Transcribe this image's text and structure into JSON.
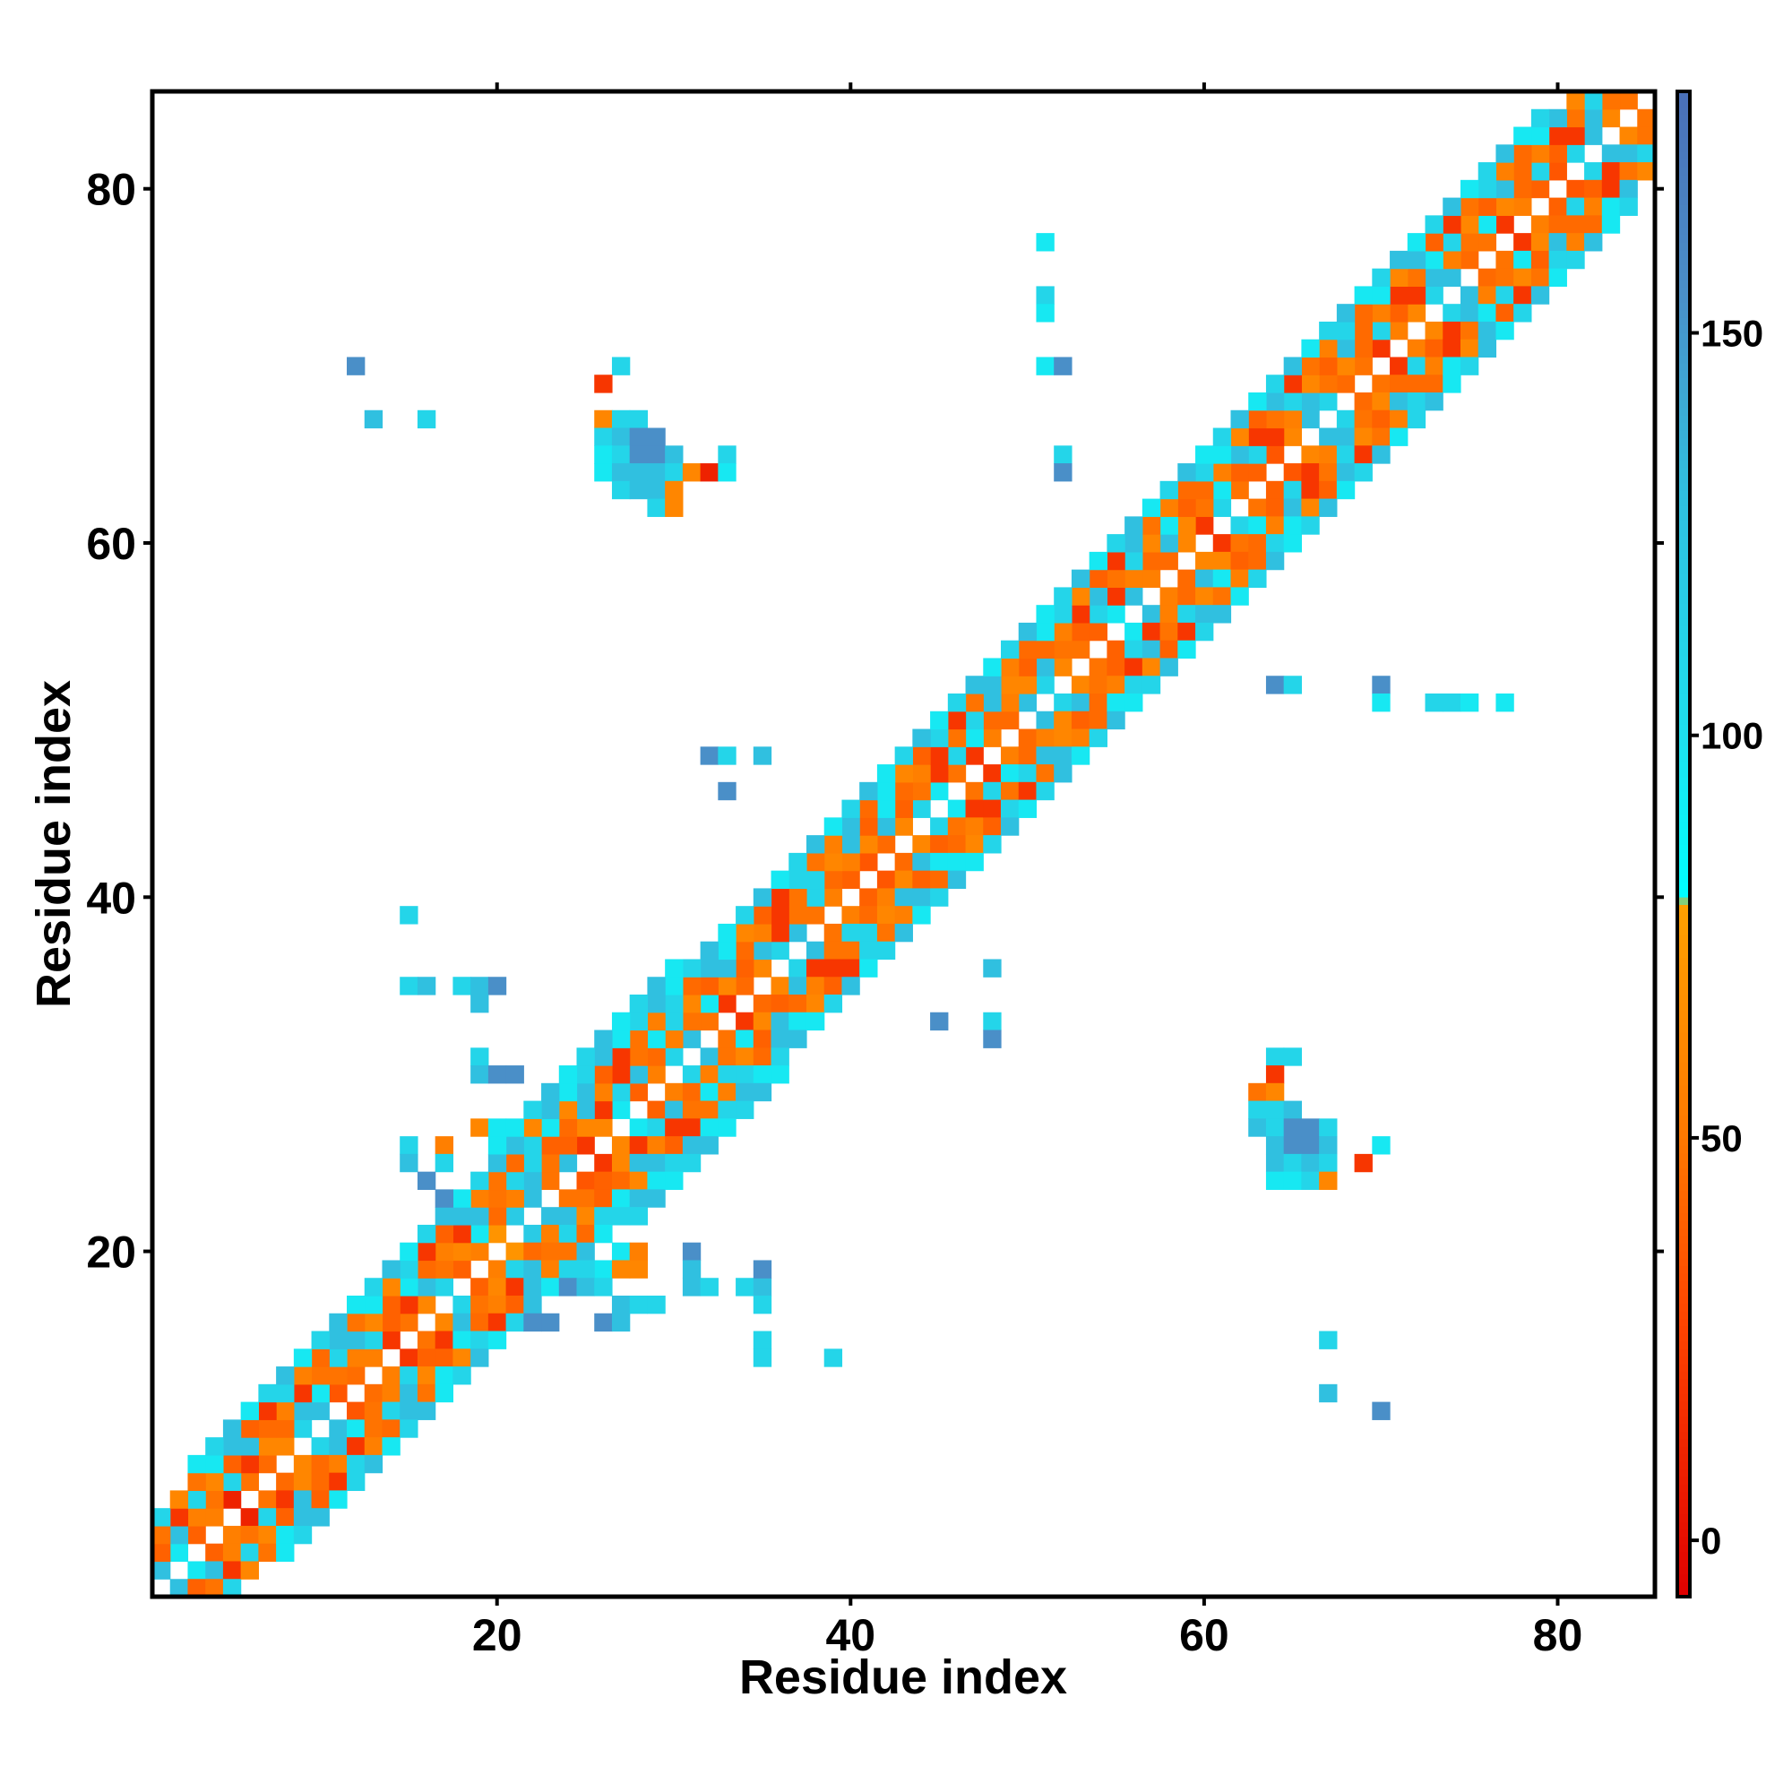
{
  "chart_data": {
    "type": "heatmap",
    "title": "",
    "xlabel": "Residue index",
    "ylabel": "Residue index",
    "xlim": [
      1,
      85
    ],
    "ylim": [
      1,
      85
    ],
    "x_ticks": [
      20,
      40,
      60,
      80
    ],
    "y_ticks": [
      20,
      40,
      60,
      80
    ],
    "grid": false,
    "legend": "colorbar-right",
    "colorbar": {
      "range": [
        -7,
        180
      ],
      "ticks": [
        0,
        50,
        100,
        150
      ],
      "stops": [
        {
          "value": -7,
          "color": "#e00000"
        },
        {
          "value": 30,
          "color": "#ff4a00"
        },
        {
          "value": 50,
          "color": "#ff7800"
        },
        {
          "value": 79,
          "color": "#ffa000"
        },
        {
          "value": 80,
          "color": "#00ffff"
        },
        {
          "value": 100,
          "color": "#1ee0ee"
        },
        {
          "value": 130,
          "color": "#30c0e0"
        },
        {
          "value": 155,
          "color": "#4a8fc8"
        },
        {
          "value": 180,
          "color": "#4a6fb8"
        },
        {
          "value": 181,
          "color": "#ffffff"
        }
      ]
    },
    "diagonal_bands": [
      {
        "offset": 1,
        "from": 1,
        "to": 84,
        "values": [
          130,
          95,
          40,
          55,
          10,
          48,
          44,
          60,
          110,
          130,
          35,
          45,
          55,
          20,
          48,
          60,
          110,
          40,
          55,
          70,
          120,
          130,
          48,
          35,
          20,
          60,
          95,
          40,
          55,
          110,
          130,
          48,
          20,
          44,
          60,
          110,
          130,
          48,
          55,
          40,
          35,
          44,
          60,
          110,
          95,
          48,
          20,
          55,
          44,
          130,
          110,
          60,
          48,
          40,
          95,
          130,
          55,
          44,
          60,
          20,
          110,
          48,
          40,
          35,
          60,
          130,
          110,
          44,
          48,
          20,
          55,
          60,
          110,
          130,
          44,
          48,
          20,
          55,
          40,
          35,
          110,
          130,
          60,
          48
        ]
      },
      {
        "offset": 2,
        "from": 1,
        "to": 83,
        "values": [
          40,
          130,
          55,
          48,
          110,
          20,
          60,
          44,
          130,
          95,
          48,
          55,
          110,
          40,
          20,
          130,
          48,
          60,
          110,
          44,
          55,
          130,
          48,
          40,
          60,
          20,
          110,
          130,
          44,
          55,
          48,
          95,
          60,
          40,
          130,
          20,
          48,
          110,
          44,
          55,
          60,
          130,
          40,
          48,
          20,
          110,
          95,
          44,
          55,
          60,
          130,
          48,
          40,
          110,
          20,
          55,
          44,
          130,
          60,
          48,
          95,
          40,
          110,
          20,
          55,
          130,
          48,
          60,
          44,
          110,
          40,
          20,
          130,
          55,
          48,
          95,
          60,
          44,
          110,
          40,
          20,
          130,
          48
        ]
      },
      {
        "offset": 3,
        "from": 1,
        "to": 82,
        "values": [
          48,
          20,
          110,
          60,
          40,
          130,
          44,
          55,
          20,
          48,
          110,
          130,
          60,
          40,
          95,
          44,
          55,
          20,
          130,
          48,
          110,
          60,
          40,
          44,
          130,
          55,
          20,
          48,
          95,
          110,
          60,
          40,
          130,
          44,
          55,
          20,
          48,
          110,
          60,
          130,
          40,
          95,
          44,
          55,
          20,
          48,
          110,
          130,
          60,
          40,
          44,
          55,
          20,
          130,
          48,
          110,
          60,
          95,
          40,
          44,
          55,
          130,
          20,
          48,
          110,
          60,
          40,
          130,
          44,
          55,
          20,
          48,
          95,
          110,
          60,
          40,
          130,
          44,
          55,
          20,
          48,
          110
        ]
      },
      {
        "offset": 4,
        "from": 1,
        "to": 81,
        "values": [
          110,
          60,
          48,
          95,
          130,
          40,
          20,
          110,
          55,
          44,
          130,
          48,
          95,
          60,
          110,
          20,
          40,
          130,
          55,
          48,
          44,
          110,
          95,
          60,
          130,
          40,
          20,
          48,
          55,
          110,
          44,
          130,
          95,
          60,
          40,
          20,
          110,
          48,
          55,
          130,
          44,
          95,
          60,
          40,
          110,
          20,
          48,
          130,
          55,
          44,
          95,
          110,
          60,
          40,
          20,
          130,
          48,
          55,
          44,
          110,
          95,
          60,
          40,
          130,
          20,
          48,
          55,
          110,
          44,
          95,
          60,
          130,
          40,
          20,
          48,
          110,
          55,
          44,
          95,
          130,
          60
        ]
      },
      {
        "offset": 5,
        "from": 3,
        "to": 79,
        "values": [
          95,
          110,
          130,
          95,
          110,
          130,
          95,
          110,
          130,
          95,
          110,
          130,
          95,
          110,
          130,
          95,
          110,
          130,
          95,
          110,
          130,
          95,
          110,
          130,
          95,
          110,
          130,
          95,
          110,
          130,
          95,
          110,
          130,
          95,
          110,
          130,
          95,
          110,
          130,
          95,
          110,
          130,
          95,
          110,
          130,
          95,
          110,
          130,
          95,
          110,
          130,
          95,
          110,
          130,
          95,
          110,
          130,
          95,
          110,
          130,
          95,
          110,
          130,
          95,
          110,
          130,
          95,
          110,
          130,
          95,
          110,
          130,
          95,
          110,
          130,
          95,
          110
        ]
      },
      {
        "offset": 6,
        "from": 22,
        "to": 30,
        "values": [
          110,
          130,
          95,
          110,
          130,
          95,
          110,
          130,
          95
        ]
      }
    ],
    "points": [
      [
        12,
        70,
        155
      ],
      [
        13,
        67,
        130
      ],
      [
        16,
        67,
        110
      ],
      [
        27,
        70,
        110
      ],
      [
        26,
        69,
        20
      ],
      [
        26,
        67,
        60
      ],
      [
        27,
        67,
        110
      ],
      [
        28,
        67,
        110
      ],
      [
        26,
        66,
        110
      ],
      [
        27,
        66,
        130
      ],
      [
        28,
        66,
        155
      ],
      [
        29,
        66,
        155
      ],
      [
        26,
        65,
        95
      ],
      [
        27,
        65,
        110
      ],
      [
        28,
        65,
        155
      ],
      [
        29,
        65,
        155
      ],
      [
        30,
        65,
        130
      ],
      [
        33,
        65,
        110
      ],
      [
        26,
        64,
        95
      ],
      [
        27,
        64,
        130
      ],
      [
        28,
        64,
        130
      ],
      [
        29,
        64,
        130
      ],
      [
        30,
        64,
        110
      ],
      [
        31,
        64,
        60
      ],
      [
        32,
        64,
        10
      ],
      [
        33,
        64,
        95
      ],
      [
        27,
        63,
        110
      ],
      [
        28,
        63,
        130
      ],
      [
        29,
        63,
        130
      ],
      [
        30,
        63,
        60
      ],
      [
        29,
        62,
        110
      ],
      [
        30,
        62,
        60
      ],
      [
        51,
        77,
        95
      ],
      [
        51,
        74,
        110
      ],
      [
        51,
        73,
        95
      ],
      [
        51,
        70,
        95
      ],
      [
        52,
        70,
        155
      ],
      [
        52,
        65,
        110
      ],
      [
        52,
        64,
        155
      ],
      [
        64,
        52,
        155
      ],
      [
        65,
        52,
        110
      ],
      [
        70,
        52,
        155
      ],
      [
        70,
        51,
        95
      ],
      [
        73,
        51,
        110
      ],
      [
        74,
        51,
        110
      ],
      [
        75,
        51,
        95
      ],
      [
        77,
        51,
        95
      ],
      [
        32,
        48,
        155
      ],
      [
        33,
        48,
        110
      ],
      [
        35,
        48,
        130
      ],
      [
        33,
        46,
        155
      ],
      [
        15,
        39,
        110
      ],
      [
        15,
        35,
        110
      ],
      [
        16,
        35,
        130
      ],
      [
        18,
        35,
        110
      ],
      [
        19,
        35,
        130
      ],
      [
        20,
        35,
        155
      ],
      [
        19,
        34,
        130
      ],
      [
        19,
        31,
        110
      ],
      [
        19,
        30,
        130
      ],
      [
        20,
        30,
        155
      ],
      [
        21,
        30,
        155
      ],
      [
        48,
        36,
        130
      ],
      [
        45,
        33,
        155
      ],
      [
        48,
        33,
        110
      ],
      [
        48,
        32,
        155
      ],
      [
        64,
        31,
        110
      ],
      [
        65,
        31,
        110
      ],
      [
        64,
        30,
        20
      ],
      [
        63,
        29,
        48
      ],
      [
        64,
        29,
        60
      ],
      [
        63,
        28,
        110
      ],
      [
        64,
        28,
        110
      ],
      [
        65,
        28,
        130
      ],
      [
        63,
        27,
        130
      ],
      [
        64,
        27,
        110
      ],
      [
        65,
        27,
        155
      ],
      [
        66,
        27,
        155
      ],
      [
        67,
        27,
        110
      ],
      [
        64,
        26,
        130
      ],
      [
        65,
        26,
        155
      ],
      [
        66,
        26,
        155
      ],
      [
        67,
        26,
        130
      ],
      [
        70,
        26,
        95
      ],
      [
        64,
        25,
        130
      ],
      [
        65,
        25,
        110
      ],
      [
        66,
        25,
        130
      ],
      [
        67,
        25,
        110
      ],
      [
        69,
        25,
        20
      ],
      [
        64,
        24,
        95
      ],
      [
        65,
        24,
        95
      ],
      [
        66,
        24,
        110
      ],
      [
        67,
        24,
        60
      ],
      [
        15,
        26,
        110
      ],
      [
        17,
        26,
        55
      ],
      [
        15,
        25,
        130
      ],
      [
        17,
        25,
        110
      ],
      [
        16,
        24,
        155
      ],
      [
        17,
        23,
        155
      ],
      [
        17,
        22,
        130
      ],
      [
        19,
        21,
        95
      ],
      [
        19,
        20,
        55
      ],
      [
        18,
        19,
        40
      ],
      [
        19,
        27,
        60
      ],
      [
        20,
        27,
        95
      ],
      [
        21,
        27,
        95
      ],
      [
        22,
        27,
        60
      ],
      [
        20,
        26,
        95
      ],
      [
        21,
        26,
        130
      ],
      [
        22,
        25,
        110
      ],
      [
        24,
        25,
        130
      ],
      [
        27,
        20,
        95
      ],
      [
        28,
        20,
        55
      ],
      [
        26,
        19,
        95
      ],
      [
        27,
        19,
        60
      ],
      [
        28,
        19,
        60
      ],
      [
        24,
        19,
        110
      ],
      [
        25,
        19,
        110
      ],
      [
        24,
        18,
        155
      ],
      [
        25,
        18,
        130
      ],
      [
        26,
        18,
        110
      ],
      [
        27,
        17,
        130
      ],
      [
        28,
        17,
        110
      ],
      [
        29,
        17,
        110
      ],
      [
        26,
        16,
        155
      ],
      [
        27,
        16,
        130
      ],
      [
        23,
        16,
        155
      ],
      [
        22,
        16,
        155
      ],
      [
        31,
        20,
        155
      ],
      [
        31,
        19,
        130
      ],
      [
        31,
        18,
        130
      ],
      [
        32,
        18,
        110
      ],
      [
        34,
        18,
        110
      ],
      [
        35,
        18,
        130
      ],
      [
        35,
        19,
        155
      ],
      [
        35,
        17,
        110
      ],
      [
        35,
        15,
        110
      ],
      [
        35,
        14,
        110
      ],
      [
        39,
        14,
        110
      ],
      [
        67,
        15,
        110
      ],
      [
        67,
        12,
        130
      ],
      [
        70,
        11,
        155
      ]
    ]
  }
}
